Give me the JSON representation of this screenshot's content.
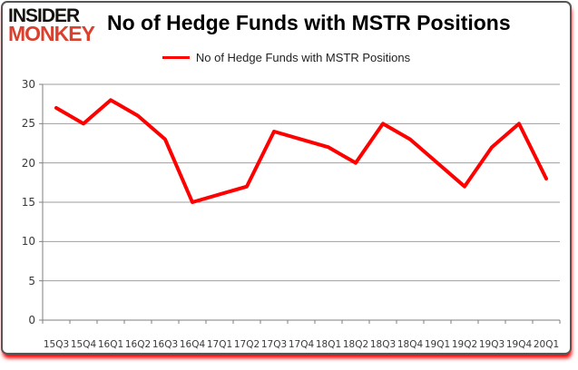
{
  "logo": {
    "line1": "INSIDER",
    "line2": "MONKEY"
  },
  "header": {
    "title": "No of Hedge Funds with MSTR Positions"
  },
  "legend": {
    "label": "No of Hedge Funds with MSTR Positions",
    "line_color": "#ff0000"
  },
  "chart_data": {
    "type": "line",
    "title": "No of Hedge Funds with MSTR Positions",
    "categories": [
      "15Q3",
      "15Q4",
      "16Q1",
      "16Q2",
      "16Q3",
      "16Q4",
      "17Q1",
      "17Q2",
      "17Q3",
      "17Q4",
      "18Q1",
      "18Q2",
      "18Q3",
      "18Q4",
      "19Q1",
      "19Q2",
      "19Q3",
      "19Q4",
      "20Q1"
    ],
    "series": [
      {
        "name": "No of Hedge Funds with MSTR Positions",
        "color": "#ff0000",
        "values": [
          27,
          25,
          28,
          26,
          23,
          15,
          16,
          17,
          24,
          23,
          22,
          20,
          25,
          23,
          20,
          17,
          22,
          25,
          18
        ]
      }
    ],
    "xlabel": "",
    "ylabel": "",
    "ylim": [
      0,
      30
    ],
    "yticks": [
      0,
      5,
      10,
      15,
      20,
      25,
      30
    ],
    "grid": true,
    "legend_position": "top-center"
  },
  "colors": {
    "accent_red": "#ff0000",
    "logo_red": "#d9412e",
    "gridline": "#9e9e9e",
    "axis": "#7f7f7f",
    "tick_text": "#3a3a3a",
    "card_shadow": "#ff0000"
  }
}
